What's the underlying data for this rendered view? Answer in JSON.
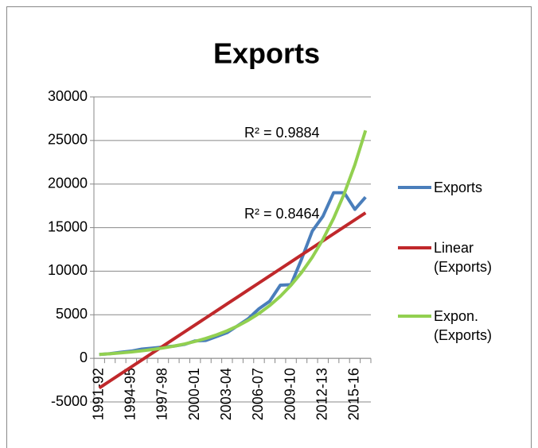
{
  "chart_data": {
    "type": "line",
    "title": "Exports",
    "categories": [
      "1991-92",
      null,
      null,
      "1994-95",
      null,
      null,
      "1997-98",
      null,
      null,
      "2000-01",
      null,
      null,
      "2003-04",
      null,
      null,
      "2006-07",
      null,
      null,
      "2009-10",
      null,
      null,
      "2012-13",
      null,
      null,
      "2015-16",
      null
    ],
    "series": [
      {
        "name": "Exports",
        "color": "#4a7ebb",
        "values": [
          440,
          540,
          700,
          830,
          1060,
          1180,
          1300,
          1400,
          1600,
          2000,
          2050,
          2500,
          2950,
          3750,
          4560,
          5700,
          6550,
          8400,
          8450,
          11400,
          14600,
          16300,
          19000,
          19000,
          17100,
          18500
        ]
      },
      {
        "name": "Linear (Exports)",
        "color": "#c0282b",
        "values": [
          -3400,
          -2596,
          -1792,
          -988,
          -184,
          620,
          1424,
          2228,
          3032,
          3836,
          4640,
          5444,
          6248,
          7052,
          7856,
          8660,
          9464,
          10268,
          11072,
          11876,
          12680,
          13484,
          14288,
          15092,
          15896,
          16700
        ]
      },
      {
        "name": "Expon. (Exports)",
        "color": "#92d050",
        "values": [
          450,
          529,
          623,
          733,
          862,
          1014,
          1193,
          1403,
          1651,
          1942,
          2285,
          2688,
          3162,
          3720,
          4377,
          5149,
          6057,
          7126,
          8384,
          9863,
          11603,
          13650,
          16059,
          18893,
          22226,
          26148
        ]
      }
    ],
    "annotations": [
      "R² = 0.9884",
      "R² = 0.8464"
    ],
    "ylim": [
      -5000,
      30000
    ],
    "yticks": [
      -5000,
      0,
      5000,
      10000,
      15000,
      20000,
      25000,
      30000
    ],
    "grid": true,
    "legend": "right"
  }
}
